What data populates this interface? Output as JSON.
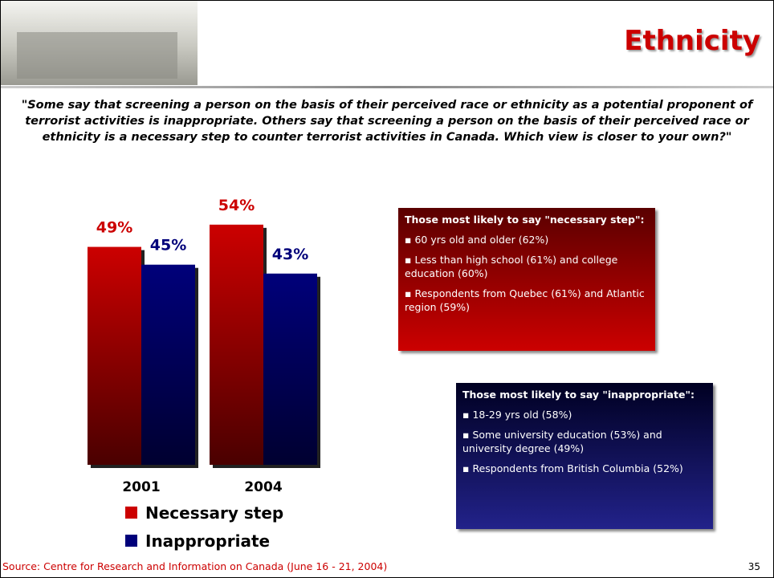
{
  "header": {
    "title": "Ethnicity"
  },
  "question": "\"Some say that screening a person on the basis of their perceived race or ethnicity as a potential proponent of terrorist activities is inappropriate. Others say that screening a person on the basis of their perceived race or ethnicity is a necessary step to counter terrorist activities in Canada. Which view is closer to your own?\"",
  "chart_data": {
    "type": "bar",
    "categories": [
      "2001",
      "2004"
    ],
    "series": [
      {
        "name": "Necessary step",
        "color": "#cc0000",
        "values": [
          49,
          54
        ],
        "value_labels": [
          "49%",
          "54%"
        ]
      },
      {
        "name": "Inappropriate",
        "color": "#00007a",
        "values": [
          45,
          43
        ],
        "value_labels": [
          "45%",
          "43%"
        ]
      }
    ]
  },
  "callouts": [
    {
      "heading": "Those most likely to say \"necessary step\":",
      "items": [
        "60 yrs old and older (62%)",
        "Less than high school (61%) and college education (60%)",
        "Respondents from Quebec (61%) and Atlantic region (59%)"
      ]
    },
    {
      "heading": "Those most likely to say \"inappropriate\":",
      "items": [
        "18-29 yrs old (58%)",
        "Some university education (53%) and university degree (49%)",
        "Respondents from British Columbia (52%)"
      ]
    }
  ],
  "footer": {
    "source": "Source: Centre for Research and Information on Canada (June 16 - 21, 2004)",
    "page": "35"
  }
}
